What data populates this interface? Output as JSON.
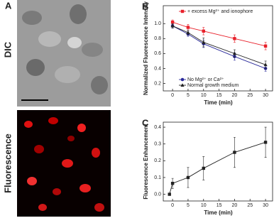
{
  "figure": {
    "panel_a": {
      "letter": "A",
      "top_label": "DIC",
      "bottom_label": "Fluorescence"
    }
  },
  "chart_data": [
    {
      "type": "line",
      "panel_label": "B",
      "xlabel": "Time (min)",
      "ylabel": "Normalized Fluorescence Intensity",
      "x": [
        0,
        5,
        10,
        20,
        30
      ],
      "series": [
        {
          "name": "+ excess Mg²⁺ and ionophore",
          "color": "#e8202a",
          "marker": "square",
          "values": [
            1.02,
            0.95,
            0.9,
            0.8,
            0.7
          ],
          "errors": [
            0.03,
            0.04,
            0.05,
            0.05,
            0.05
          ]
        },
        {
          "name": "No Mg²⁺ or Ca²⁺",
          "color": "#2a2a9a",
          "marker": "circle",
          "values": [
            0.97,
            0.86,
            0.73,
            0.56,
            0.4
          ],
          "errors": [
            0.03,
            0.03,
            0.05,
            0.05,
            0.04
          ]
        },
        {
          "name": "Normal growth medium",
          "color": "#222222",
          "marker": "triangle",
          "values": [
            0.97,
            0.88,
            0.75,
            0.6,
            0.45
          ],
          "errors": [
            0.03,
            0.03,
            0.06,
            0.05,
            0.05
          ]
        }
      ],
      "xlim": [
        -3,
        32.5
      ],
      "xticks": [
        0,
        5,
        10,
        15,
        20,
        25,
        30
      ],
      "ylim": [
        0.1,
        1.24
      ],
      "yticks": [
        0.2,
        0.4,
        0.6,
        0.8,
        {
          "value": 1,
          "label": "1.0"
        }
      ]
    },
    {
      "type": "line",
      "panel_label": "C",
      "xlabel": "Time (min)",
      "ylabel": "Fluorescence Enhancement",
      "x": [
        -1,
        0,
        5,
        10,
        20,
        30
      ],
      "series": [
        {
          "color": "#222222",
          "marker": "square",
          "values": [
            0,
            0.065,
            0.1,
            0.155,
            0.25,
            0.31
          ],
          "errors": [
            0,
            0.03,
            0.06,
            0.07,
            0.09,
            0.09
          ]
        }
      ],
      "xlim": [
        -3,
        32.5
      ],
      "xticks": [
        0,
        5,
        10,
        15,
        20,
        25,
        30
      ],
      "ylim": [
        -0.04,
        0.43
      ],
      "yticks": [
        {
          "value": 0,
          "label": "0.0"
        },
        0.1,
        0.2,
        0.3,
        0.4
      ]
    }
  ]
}
